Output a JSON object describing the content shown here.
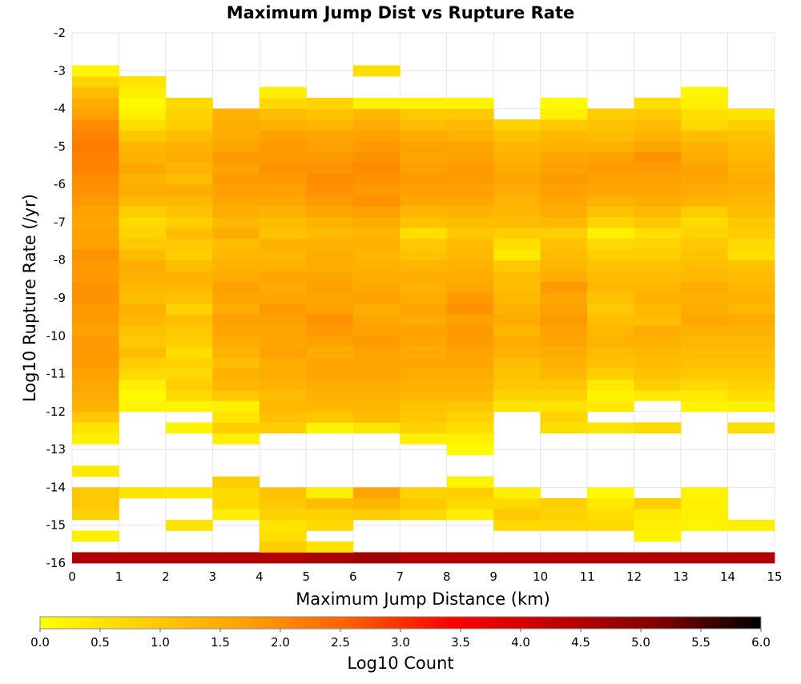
{
  "chart_data": {
    "type": "heatmap",
    "title": "Maximum Jump Dist vs Rupture Rate",
    "xlabel": "Maximum Jump Distance (km)",
    "ylabel": "Log10 Rupture Rate (/yr)",
    "xlim": [
      0,
      15
    ],
    "ylim": [
      -16,
      -2
    ],
    "x_ticks": [
      "0",
      "1",
      "2",
      "3",
      "4",
      "5",
      "6",
      "7",
      "8",
      "9",
      "10",
      "11",
      "12",
      "13",
      "14",
      "15"
    ],
    "y_ticks": [
      "-2",
      "-3",
      "-4",
      "-5",
      "-6",
      "-7",
      "-8",
      "-9",
      "-10",
      "-11",
      "-12",
      "-13",
      "-14",
      "-15",
      "-16"
    ],
    "x_bin_size": 1,
    "y_bin_size": 0.2857,
    "x_bin_starts": [
      0,
      1,
      2,
      3,
      4,
      5,
      6,
      7,
      8,
      9,
      10,
      11,
      12,
      13,
      14
    ],
    "y_bin_bottoms": [
      -16.0,
      -15.714,
      -15.429,
      -15.143,
      -14.857,
      -14.571,
      -14.286,
      -14.0,
      -13.714,
      -13.429,
      -13.143,
      -12.857,
      -12.571,
      -12.286,
      -12.0,
      -11.714,
      -11.429,
      -11.143,
      -10.857,
      -10.571,
      -10.286,
      -10.0,
      -9.714,
      -9.429,
      -9.143,
      -8.857,
      -8.571,
      -8.286,
      -8.0,
      -7.714,
      -7.429,
      -7.143,
      -6.857,
      -6.571,
      -6.286,
      -6.0,
      -5.714,
      -5.429,
      -5.143,
      -4.857,
      -4.571,
      -4.286,
      -4.0,
      -3.714,
      -3.429,
      -3.143,
      -2.857,
      -2.571,
      -2.286
    ],
    "log10_counts_by_column": [
      [
        4.5,
        null,
        0.3,
        null,
        0.8,
        1.0,
        1.0,
        null,
        0.4,
        null,
        null,
        0.3,
        0.5,
        1.0,
        1.4,
        1.5,
        1.6,
        1.7,
        1.8,
        1.8,
        1.8,
        1.7,
        1.8,
        1.8,
        1.9,
        1.9,
        1.8,
        1.8,
        1.9,
        1.7,
        1.7,
        1.6,
        1.7,
        1.8,
        1.9,
        2.0,
        2.1,
        2.1,
        2.2,
        2.1,
        2.0,
        1.7,
        1.5,
        1.2,
        0.8,
        0.2,
        null,
        null,
        null
      ],
      [
        4.5,
        null,
        null,
        null,
        null,
        null,
        0.5,
        null,
        null,
        null,
        null,
        null,
        null,
        null,
        0.2,
        0.1,
        0.3,
        0.7,
        0.9,
        1.2,
        1.0,
        1.1,
        1.3,
        1.4,
        1.2,
        1.3,
        1.4,
        1.5,
        1.2,
        1.0,
        0.8,
        0.7,
        0.9,
        1.3,
        1.5,
        1.4,
        1.6,
        1.4,
        1.3,
        1.0,
        0.6,
        0.3,
        0.1,
        0.3,
        0.5,
        null,
        null,
        null,
        null
      ],
      [
        4.5,
        null,
        null,
        0.5,
        null,
        null,
        0.4,
        null,
        null,
        null,
        null,
        null,
        0.2,
        null,
        0.2,
        0.7,
        0.9,
        0.7,
        0.8,
        0.6,
        0.9,
        1.0,
        1.2,
        0.8,
        1.1,
        1.3,
        1.4,
        1.2,
        0.9,
        1.0,
        1.2,
        0.9,
        1.1,
        1.3,
        1.5,
        1.2,
        1.4,
        1.5,
        1.4,
        1.2,
        0.9,
        0.8,
        0.7,
        null,
        null,
        null,
        null,
        null,
        null
      ],
      [
        4.5,
        null,
        null,
        null,
        0.3,
        0.7,
        0.7,
        0.9,
        null,
        null,
        null,
        0.3,
        0.9,
        0.5,
        0.3,
        1.0,
        1.3,
        1.4,
        1.2,
        1.4,
        1.5,
        1.6,
        1.7,
        1.5,
        1.6,
        1.7,
        1.5,
        1.4,
        1.3,
        1.2,
        1.5,
        1.3,
        1.5,
        1.6,
        1.7,
        1.8,
        1.7,
        1.8,
        1.6,
        1.5,
        1.5,
        1.4,
        null,
        null,
        null,
        null,
        null,
        null,
        null
      ],
      [
        4.5,
        0.9,
        0.6,
        0.5,
        0.8,
        1.0,
        1.1,
        null,
        null,
        null,
        null,
        null,
        0.9,
        1.1,
        1.3,
        1.2,
        1.4,
        1.5,
        1.5,
        1.7,
        1.6,
        1.6,
        1.7,
        1.8,
        1.6,
        1.5,
        1.6,
        1.4,
        1.3,
        1.4,
        1.1,
        1.2,
        1.4,
        1.6,
        1.7,
        1.8,
        1.9,
        1.8,
        1.8,
        1.7,
        1.4,
        1.2,
        0.7,
        0.3,
        null,
        null,
        null,
        null,
        null
      ],
      [
        4.6,
        0.5,
        null,
        0.7,
        0.8,
        1.2,
        0.3,
        null,
        null,
        null,
        null,
        null,
        0.2,
        1.0,
        1.3,
        1.4,
        1.5,
        1.6,
        1.6,
        1.5,
        1.7,
        1.8,
        1.9,
        1.7,
        1.6,
        1.7,
        1.6,
        1.5,
        1.5,
        1.4,
        1.2,
        1.4,
        1.6,
        1.8,
        1.9,
        2.0,
        1.9,
        1.8,
        1.7,
        1.6,
        1.3,
        1.1,
        0.8,
        null,
        null,
        null,
        null,
        null,
        null
      ],
      [
        4.7,
        null,
        null,
        null,
        0.9,
        1.3,
        1.6,
        null,
        null,
        null,
        null,
        null,
        0.5,
        1.2,
        1.3,
        1.4,
        1.5,
        1.6,
        1.6,
        1.7,
        1.8,
        1.7,
        1.6,
        1.5,
        1.7,
        1.6,
        1.5,
        1.4,
        1.3,
        1.4,
        1.3,
        1.5,
        1.7,
        1.9,
        1.8,
        1.9,
        2.0,
        1.9,
        1.8,
        1.7,
        1.5,
        1.3,
        0.3,
        null,
        null,
        0.6,
        null,
        null,
        null
      ],
      [
        4.5,
        null,
        null,
        null,
        0.7,
        1.0,
        0.8,
        null,
        null,
        null,
        null,
        0.3,
        0.8,
        1.0,
        1.1,
        1.3,
        1.4,
        1.5,
        1.6,
        1.5,
        1.6,
        1.7,
        1.5,
        1.6,
        1.5,
        1.4,
        1.5,
        1.3,
        1.1,
        1.0,
        0.6,
        1.1,
        1.3,
        1.6,
        1.7,
        1.8,
        1.7,
        1.6,
        1.7,
        1.5,
        1.2,
        1.0,
        0.3,
        null,
        null,
        null,
        null,
        null,
        null
      ],
      [
        4.5,
        null,
        null,
        null,
        0.3,
        0.7,
        0.9,
        0.2,
        null,
        null,
        0.1,
        0.3,
        0.6,
        0.8,
        1.0,
        1.3,
        1.4,
        1.5,
        1.6,
        1.7,
        1.8,
        1.8,
        1.7,
        1.9,
        1.8,
        1.6,
        1.5,
        1.4,
        1.3,
        1.2,
        1.0,
        1.2,
        1.4,
        1.6,
        1.7,
        1.8,
        1.8,
        1.7,
        1.6,
        1.4,
        1.3,
        1.0,
        0.2,
        null,
        null,
        null,
        null,
        null,
        null
      ],
      [
        4.5,
        null,
        null,
        0.7,
        1.0,
        0.7,
        0.3,
        null,
        null,
        null,
        null,
        null,
        null,
        null,
        0.5,
        0.8,
        1.0,
        1.1,
        1.2,
        1.4,
        1.5,
        1.3,
        1.5,
        1.4,
        1.3,
        1.2,
        1.2,
        1.0,
        0.4,
        0.6,
        0.9,
        1.2,
        1.3,
        1.4,
        1.5,
        1.6,
        1.5,
        1.4,
        1.3,
        1.1,
        0.8,
        null,
        null,
        null,
        null,
        null,
        null,
        null,
        null
      ],
      [
        4.5,
        null,
        null,
        0.7,
        0.8,
        0.9,
        null,
        null,
        null,
        null,
        null,
        null,
        0.6,
        0.8,
        0.5,
        0.8,
        1.0,
        1.3,
        1.4,
        1.5,
        1.6,
        1.7,
        1.8,
        1.7,
        1.6,
        1.8,
        1.5,
        1.3,
        1.2,
        1.1,
        0.9,
        1.3,
        1.5,
        1.6,
        1.7,
        1.8,
        1.7,
        1.6,
        1.4,
        1.3,
        1.0,
        0.3,
        0.1,
        null,
        null,
        null,
        null,
        null,
        null
      ],
      [
        4.5,
        null,
        null,
        0.7,
        0.6,
        0.4,
        0.1,
        null,
        null,
        null,
        null,
        null,
        0.5,
        null,
        0.4,
        0.2,
        0.4,
        0.9,
        1.1,
        1.2,
        1.4,
        1.3,
        1.2,
        1.0,
        1.1,
        1.3,
        1.2,
        1.1,
        0.9,
        0.7,
        0.3,
        0.8,
        1.1,
        1.4,
        1.6,
        1.7,
        1.8,
        1.7,
        1.4,
        1.2,
        1.1,
        0.9,
        null,
        null,
        null,
        null,
        null,
        null,
        null
      ],
      [
        4.5,
        null,
        0.2,
        0.3,
        0.4,
        0.9,
        null,
        null,
        null,
        null,
        null,
        null,
        0.7,
        null,
        null,
        0.4,
        0.9,
        1.1,
        1.2,
        1.3,
        1.4,
        1.5,
        1.2,
        1.3,
        1.4,
        1.3,
        1.2,
        1.1,
        0.9,
        0.8,
        0.6,
        1.0,
        1.3,
        1.5,
        1.6,
        1.7,
        1.8,
        1.9,
        1.6,
        1.4,
        1.2,
        1.0,
        0.6,
        null,
        null,
        null,
        null,
        null,
        null
      ],
      [
        4.5,
        null,
        null,
        0.2,
        0.3,
        0.3,
        0.2,
        null,
        null,
        null,
        null,
        null,
        null,
        null,
        0.2,
        0.4,
        0.7,
        1.0,
        1.1,
        1.2,
        1.3,
        1.4,
        1.6,
        1.5,
        1.4,
        1.5,
        1.3,
        1.2,
        1.1,
        1.0,
        0.8,
        0.7,
        0.9,
        1.4,
        1.5,
        1.6,
        1.7,
        1.5,
        1.4,
        1.2,
        0.7,
        0.6,
        0.3,
        0.2,
        null,
        null,
        null,
        null,
        null
      ],
      [
        4.5,
        null,
        null,
        0.3,
        null,
        null,
        null,
        null,
        null,
        null,
        null,
        null,
        0.6,
        null,
        0.3,
        0.6,
        0.8,
        1.0,
        1.1,
        1.2,
        1.3,
        1.4,
        1.5,
        1.3,
        1.4,
        1.3,
        1.2,
        1.1,
        0.6,
        0.7,
        0.9,
        1.0,
        1.2,
        1.3,
        1.4,
        1.5,
        1.4,
        1.3,
        1.2,
        1.1,
        0.9,
        0.5,
        null,
        null,
        null,
        null,
        null,
        null,
        null
      ]
    ],
    "colorbar": {
      "label": "Log10 Count",
      "range": [
        0.0,
        6.0
      ],
      "ticks": [
        "0.0",
        "0.5",
        "1.0",
        "1.5",
        "2.0",
        "2.5",
        "3.0",
        "3.5",
        "4.0",
        "4.5",
        "5.0",
        "5.5",
        "6.0"
      ],
      "colors": [
        "#ffff00",
        "#ffd000",
        "#ffa000",
        "#ff6000",
        "#ff0000",
        "#c00000",
        "#800000",
        "#000000"
      ]
    },
    "grid": true,
    "legend": "colorbar-bottom"
  }
}
